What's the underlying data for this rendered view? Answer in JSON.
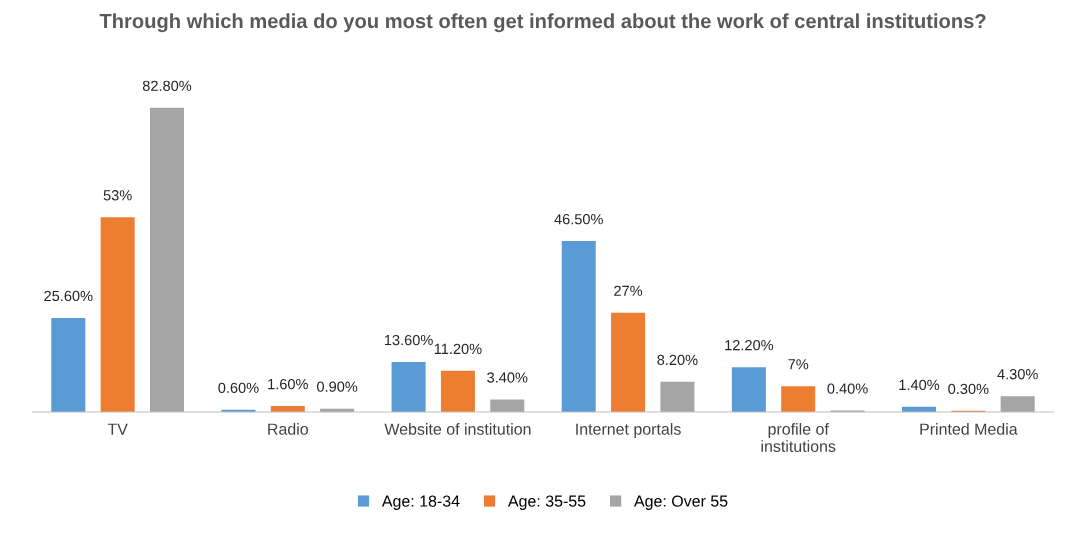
{
  "chart_data": {
    "type": "bar",
    "title": "Through which media do you most often get informed about the work of central institutions?",
    "categories": [
      "TV",
      "Radio",
      "Website of institution",
      "Internet portals",
      "profile of institutions",
      "Printed Media"
    ],
    "series": [
      {
        "name": "Age: 18-34",
        "color": "#5b9bd5",
        "values": [
          25.6,
          0.6,
          13.6,
          46.5,
          12.2,
          1.4
        ],
        "value_labels": [
          "25.60%",
          "0.60%",
          "13.60%",
          "46.50%",
          "12.20%",
          "1.40%"
        ]
      },
      {
        "name": "Age: 35-55",
        "color": "#ed7d31",
        "values": [
          53,
          1.6,
          11.2,
          27,
          7,
          0.3
        ],
        "value_labels": [
          "53%",
          "1.60%",
          "11.20%",
          "27%",
          "7%",
          "0.30%"
        ]
      },
      {
        "name": "Age: Over 55",
        "color": "#a5a5a5",
        "values": [
          82.8,
          0.9,
          3.4,
          8.2,
          0.4,
          4.3
        ],
        "value_labels": [
          "82.80%",
          "0.90%",
          "3.40%",
          "8.20%",
          "0.40%",
          "4.30%"
        ]
      }
    ],
    "legend": "bottom"
  }
}
